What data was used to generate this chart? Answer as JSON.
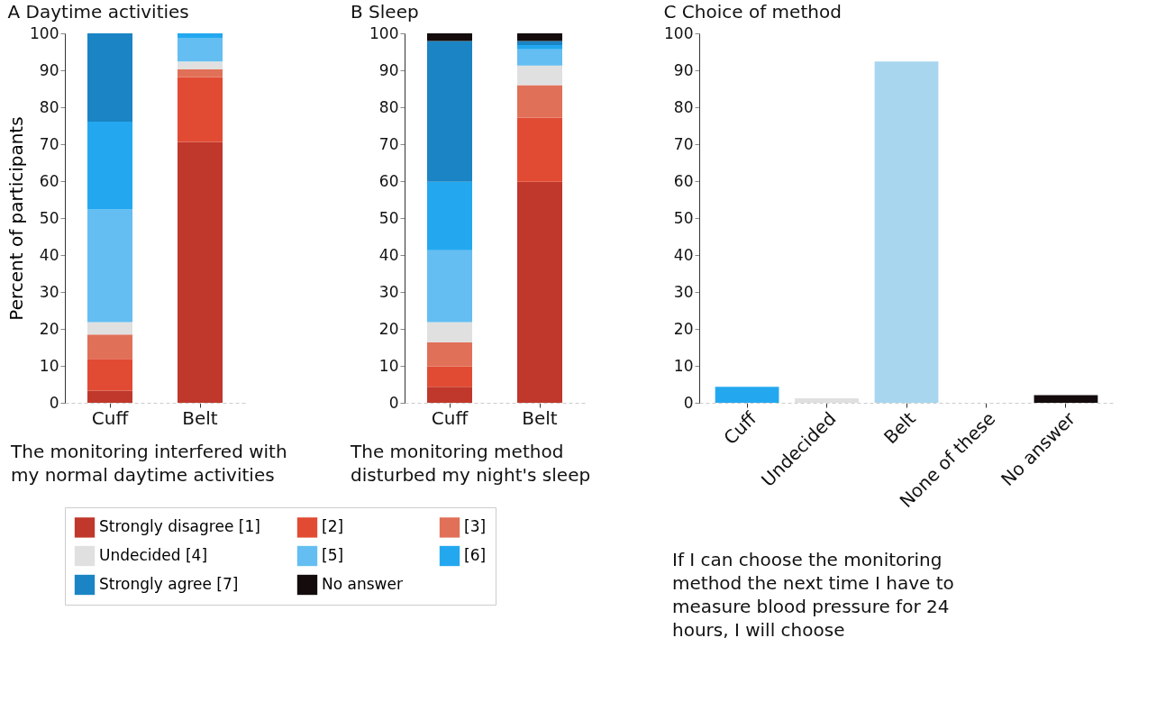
{
  "chart_data": [
    {
      "type": "bar",
      "title": "A  Daytime activities",
      "ylabel": "Percent of participants",
      "categories": [
        "Cuff",
        "Belt"
      ],
      "stacked": true,
      "ylim": [
        0,
        100
      ],
      "yticks": [
        0,
        10,
        20,
        30,
        40,
        50,
        60,
        70,
        80,
        90,
        100
      ],
      "grid": false,
      "legend": "bottom",
      "series": [
        {
          "name": "Strongly disagree [1]",
          "color": "#c0382b",
          "values": [
            3.3,
            70.6
          ]
        },
        {
          "name": "[2]",
          "color": "#e24b33",
          "values": [
            8.6,
            17.6
          ]
        },
        {
          "name": "[3]",
          "color": "#e07058",
          "values": [
            6.6,
            2.1
          ]
        },
        {
          "name": "Undecided [4]",
          "color": "#e0e0e0",
          "values": [
            3.3,
            2.1
          ]
        },
        {
          "name": "[5]",
          "color": "#64bef1",
          "values": [
            30.5,
            6.4
          ]
        },
        {
          "name": "[6]",
          "color": "#23a8f0",
          "values": [
            23.8,
            1.2
          ]
        },
        {
          "name": "Strongly agree [7]",
          "color": "#1b84c4",
          "values": [
            23.9,
            0
          ]
        }
      ],
      "annotations": [
        "The monitoring interfered with my normal daytime activities"
      ]
    },
    {
      "type": "bar",
      "title": "B  Sleep",
      "categories": [
        "Cuff",
        "Belt"
      ],
      "stacked": true,
      "ylim": [
        0,
        100
      ],
      "yticks": [
        0,
        10,
        20,
        30,
        40,
        50,
        60,
        70,
        80,
        90,
        100
      ],
      "grid": false,
      "legend": "bottom",
      "series": [
        {
          "name": "Strongly disagree [1]",
          "color": "#c0382b",
          "values": [
            4.3,
            59.8
          ]
        },
        {
          "name": "[2]",
          "color": "#e24b33",
          "values": [
            5.5,
            17.4
          ]
        },
        {
          "name": "[3]",
          "color": "#e07058",
          "values": [
            6.6,
            8.8
          ]
        },
        {
          "name": "Undecided [4]",
          "color": "#e0e0e0",
          "values": [
            5.4,
            5.3
          ]
        },
        {
          "name": "[5]",
          "color": "#64bef1",
          "values": [
            19.5,
            4.4
          ]
        },
        {
          "name": "[6]",
          "color": "#23a8f0",
          "values": [
            18.5,
            1.1
          ]
        },
        {
          "name": "Strongly agree [7]",
          "color": "#1b84c4",
          "values": [
            38.1,
            1.1
          ]
        },
        {
          "name": "No answer",
          "color": "#140c0c",
          "values": [
            2.1,
            2.1
          ]
        }
      ],
      "annotations": [
        "The monitoring method disturbed my night's sleep"
      ]
    },
    {
      "type": "bar",
      "title": "C  Choice of method",
      "categories": [
        "Cuff",
        "Undecided",
        "Belt",
        "None of these",
        "No answer"
      ],
      "values": [
        4.3,
        1.2,
        92.4,
        0,
        2.1
      ],
      "colors": [
        "#23a8f0",
        "#e0e0e0",
        "#a8d6ef",
        "#ffffff",
        "#140c0c"
      ],
      "ylim": [
        0,
        100
      ],
      "yticks": [
        0,
        10,
        20,
        30,
        40,
        50,
        60,
        70,
        80,
        90,
        100
      ],
      "grid": false,
      "annotations": [
        "If I can choose the monitoring method the next time I have to measure blood pressure for 24 hours, I will choose"
      ]
    }
  ]
}
